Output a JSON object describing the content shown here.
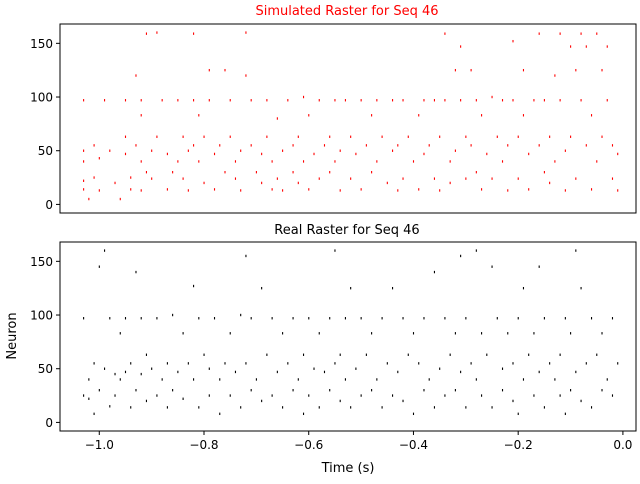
{
  "chart_data": [
    {
      "type": "scatter",
      "title": "Simulated Raster for Seq 46",
      "title_color": "#ff0000",
      "marker_color": "#ff0000",
      "xlabel": "",
      "ylabel": "",
      "xlim": [
        -1.075,
        0.025
      ],
      "ylim": [
        -8,
        168
      ],
      "x_ticks_shown": false,
      "y_ticks": [
        0,
        50,
        100,
        150
      ],
      "y_tick_labels": [
        "0",
        "50",
        "100",
        "150"
      ],
      "grid": false,
      "points": [
        [
          -1.03,
          97
        ],
        [
          -1.03,
          50
        ],
        [
          -1.03,
          40
        ],
        [
          -1.03,
          22
        ],
        [
          -1.03,
          14
        ],
        [
          -1.02,
          5
        ],
        [
          -1.01,
          55
        ],
        [
          -1.01,
          25
        ],
        [
          -1.0,
          43
        ],
        [
          -1.0,
          13
        ],
        [
          -0.99,
          97
        ],
        [
          -0.98,
          50
        ],
        [
          -0.97,
          20
        ],
        [
          -0.96,
          5
        ],
        [
          -0.95,
          97
        ],
        [
          -0.95,
          63
        ],
        [
          -0.95,
          47
        ],
        [
          -0.94,
          25
        ],
        [
          -0.94,
          14
        ],
        [
          -0.93,
          120
        ],
        [
          -0.93,
          55
        ],
        [
          -0.92,
          97
        ],
        [
          -0.92,
          83
        ],
        [
          -0.92,
          40
        ],
        [
          -0.92,
          13
        ],
        [
          -0.91,
          159
        ],
        [
          -0.91,
          30
        ],
        [
          -0.9,
          50
        ],
        [
          -0.9,
          24
        ],
        [
          -0.89,
          160
        ],
        [
          -0.89,
          63
        ],
        [
          -0.88,
          97
        ],
        [
          -0.87,
          47
        ],
        [
          -0.87,
          14
        ],
        [
          -0.86,
          30
        ],
        [
          -0.85,
          97
        ],
        [
          -0.85,
          40
        ],
        [
          -0.84,
          63
        ],
        [
          -0.84,
          24
        ],
        [
          -0.83,
          50
        ],
        [
          -0.83,
          13
        ],
        [
          -0.82,
          159
        ],
        [
          -0.82,
          97
        ],
        [
          -0.82,
          55
        ],
        [
          -0.81,
          83
        ],
        [
          -0.81,
          40
        ],
        [
          -0.8,
          63
        ],
        [
          -0.8,
          20
        ],
        [
          -0.79,
          97
        ],
        [
          -0.79,
          125
        ],
        [
          -0.78,
          47
        ],
        [
          -0.78,
          14
        ],
        [
          -0.77,
          55
        ],
        [
          -0.76,
          125
        ],
        [
          -0.76,
          30
        ],
        [
          -0.75,
          97
        ],
        [
          -0.75,
          63
        ],
        [
          -0.74,
          40
        ],
        [
          -0.74,
          24
        ],
        [
          -0.73,
          50
        ],
        [
          -0.73,
          13
        ],
        [
          -0.72,
          160
        ],
        [
          -0.72,
          120
        ],
        [
          -0.71,
          97
        ],
        [
          -0.71,
          55
        ],
        [
          -0.7,
          30
        ],
        [
          -0.69,
          47
        ],
        [
          -0.69,
          20
        ],
        [
          -0.68,
          97
        ],
        [
          -0.68,
          63
        ],
        [
          -0.67,
          40
        ],
        [
          -0.67,
          14
        ],
        [
          -0.66,
          80
        ],
        [
          -0.66,
          24
        ],
        [
          -0.65,
          50
        ],
        [
          -0.65,
          13
        ],
        [
          -0.64,
          97
        ],
        [
          -0.63,
          55
        ],
        [
          -0.63,
          30
        ],
        [
          -0.62,
          63
        ],
        [
          -0.62,
          20
        ],
        [
          -0.61,
          100
        ],
        [
          -0.61,
          40
        ],
        [
          -0.6,
          83
        ],
        [
          -0.6,
          14
        ],
        [
          -0.59,
          47
        ],
        [
          -0.58,
          97
        ],
        [
          -0.58,
          24
        ],
        [
          -0.57,
          55
        ],
        [
          -0.56,
          63
        ],
        [
          -0.56,
          30
        ],
        [
          -0.55,
          97
        ],
        [
          -0.55,
          40
        ],
        [
          -0.54,
          50
        ],
        [
          -0.54,
          13
        ],
        [
          -0.53,
          97
        ],
        [
          -0.52,
          63
        ],
        [
          -0.52,
          24
        ],
        [
          -0.51,
          47
        ],
        [
          -0.5,
          97
        ],
        [
          -0.5,
          14
        ],
        [
          -0.49,
          55
        ],
        [
          -0.48,
          83
        ],
        [
          -0.48,
          30
        ],
        [
          -0.47,
          97
        ],
        [
          -0.47,
          40
        ],
        [
          -0.46,
          63
        ],
        [
          -0.45,
          20
        ],
        [
          -0.44,
          97
        ],
        [
          -0.44,
          50
        ],
        [
          -0.43,
          55
        ],
        [
          -0.43,
          13
        ],
        [
          -0.42,
          97
        ],
        [
          -0.42,
          24
        ],
        [
          -0.41,
          63
        ],
        [
          -0.4,
          40
        ],
        [
          -0.39,
          83
        ],
        [
          -0.39,
          14
        ],
        [
          -0.38,
          97
        ],
        [
          -0.38,
          47
        ],
        [
          -0.37,
          55
        ],
        [
          -0.36,
          97
        ],
        [
          -0.36,
          24
        ],
        [
          -0.35,
          63
        ],
        [
          -0.35,
          13
        ],
        [
          -0.34,
          159
        ],
        [
          -0.34,
          97
        ],
        [
          -0.33,
          40
        ],
        [
          -0.33,
          20
        ],
        [
          -0.32,
          125
        ],
        [
          -0.32,
          50
        ],
        [
          -0.31,
          147
        ],
        [
          -0.31,
          97
        ],
        [
          -0.3,
          63
        ],
        [
          -0.3,
          24
        ],
        [
          -0.29,
          125
        ],
        [
          -0.29,
          55
        ],
        [
          -0.28,
          97
        ],
        [
          -0.28,
          30
        ],
        [
          -0.27,
          83
        ],
        [
          -0.27,
          14
        ],
        [
          -0.26,
          47
        ],
        [
          -0.25,
          100
        ],
        [
          -0.25,
          24
        ],
        [
          -0.24,
          63
        ],
        [
          -0.23,
          97
        ],
        [
          -0.23,
          40
        ],
        [
          -0.22,
          55
        ],
        [
          -0.22,
          13
        ],
        [
          -0.21,
          152
        ],
        [
          -0.21,
          97
        ],
        [
          -0.2,
          63
        ],
        [
          -0.2,
          24
        ],
        [
          -0.19,
          125
        ],
        [
          -0.19,
          83
        ],
        [
          -0.18,
          47
        ],
        [
          -0.18,
          14
        ],
        [
          -0.17,
          97
        ],
        [
          -0.16,
          159
        ],
        [
          -0.16,
          55
        ],
        [
          -0.15,
          97
        ],
        [
          -0.15,
          30
        ],
        [
          -0.14,
          63
        ],
        [
          -0.14,
          20
        ],
        [
          -0.13,
          120
        ],
        [
          -0.13,
          40
        ],
        [
          -0.12,
          159
        ],
        [
          -0.12,
          97
        ],
        [
          -0.11,
          50
        ],
        [
          -0.11,
          13
        ],
        [
          -0.1,
          147
        ],
        [
          -0.1,
          63
        ],
        [
          -0.09,
          125
        ],
        [
          -0.09,
          24
        ],
        [
          -0.08,
          159
        ],
        [
          -0.08,
          97
        ],
        [
          -0.07,
          147
        ],
        [
          -0.07,
          55
        ],
        [
          -0.06,
          83
        ],
        [
          -0.06,
          14
        ],
        [
          -0.05,
          159
        ],
        [
          -0.05,
          40
        ],
        [
          -0.04,
          125
        ],
        [
          -0.04,
          63
        ],
        [
          -0.03,
          147
        ],
        [
          -0.03,
          97
        ],
        [
          -0.02,
          55
        ],
        [
          -0.02,
          24
        ],
        [
          -0.01,
          47
        ],
        [
          -0.01,
          13
        ]
      ]
    },
    {
      "type": "scatter",
      "title": "Real Raster for Seq 46",
      "title_color": "#000000",
      "marker_color": "#000000",
      "xlabel": "Time (s)",
      "ylabel": "Neuron",
      "xlim": [
        -1.075,
        0.025
      ],
      "ylim": [
        -8,
        168
      ],
      "x_ticks": [
        -1.0,
        -0.8,
        -0.6,
        -0.4,
        -0.2,
        0.0
      ],
      "x_tick_labels": [
        "−1.0",
        "−0.8",
        "−0.6",
        "−0.4",
        "−0.2",
        "0.0"
      ],
      "y_ticks": [
        0,
        50,
        100,
        150
      ],
      "y_tick_labels": [
        "0",
        "50",
        "100",
        "150"
      ],
      "grid": false,
      "points": [
        [
          -1.03,
          97
        ],
        [
          -1.03,
          25
        ],
        [
          -1.02,
          40
        ],
        [
          -1.02,
          22
        ],
        [
          -1.01,
          55
        ],
        [
          -1.01,
          8
        ],
        [
          -1.0,
          145
        ],
        [
          -1.0,
          30
        ],
        [
          -0.99,
          160
        ],
        [
          -0.99,
          50
        ],
        [
          -0.98,
          97
        ],
        [
          -0.98,
          15
        ],
        [
          -0.97,
          45
        ],
        [
          -0.97,
          25
        ],
        [
          -0.96,
          83
        ],
        [
          -0.96,
          40
        ],
        [
          -0.95,
          97
        ],
        [
          -0.95,
          47
        ],
        [
          -0.94,
          55
        ],
        [
          -0.94,
          14
        ],
        [
          -0.93,
          140
        ],
        [
          -0.93,
          30
        ],
        [
          -0.92,
          97
        ],
        [
          -0.92,
          45
        ],
        [
          -0.91,
          63
        ],
        [
          -0.91,
          20
        ],
        [
          -0.9,
          50
        ],
        [
          -0.89,
          97
        ],
        [
          -0.89,
          25
        ],
        [
          -0.88,
          40
        ],
        [
          -0.87,
          55
        ],
        [
          -0.87,
          14
        ],
        [
          -0.86,
          100
        ],
        [
          -0.86,
          30
        ],
        [
          -0.85,
          47
        ],
        [
          -0.84,
          83
        ],
        [
          -0.84,
          22
        ],
        [
          -0.83,
          55
        ],
        [
          -0.82,
          127
        ],
        [
          -0.82,
          40
        ],
        [
          -0.81,
          97
        ],
        [
          -0.81,
          14
        ],
        [
          -0.8,
          63
        ],
        [
          -0.79,
          50
        ],
        [
          -0.79,
          25
        ],
        [
          -0.78,
          97
        ],
        [
          -0.77,
          40
        ],
        [
          -0.77,
          8
        ],
        [
          -0.76,
          55
        ],
        [
          -0.75,
          83
        ],
        [
          -0.75,
          25
        ],
        [
          -0.74,
          47
        ],
        [
          -0.73,
          100
        ],
        [
          -0.73,
          14
        ],
        [
          -0.72,
          155
        ],
        [
          -0.72,
          55
        ],
        [
          -0.71,
          97
        ],
        [
          -0.71,
          30
        ],
        [
          -0.7,
          40
        ],
        [
          -0.69,
          125
        ],
        [
          -0.69,
          20
        ],
        [
          -0.68,
          63
        ],
        [
          -0.67,
          97
        ],
        [
          -0.67,
          25
        ],
        [
          -0.66,
          47
        ],
        [
          -0.65,
          83
        ],
        [
          -0.65,
          14
        ],
        [
          -0.64,
          55
        ],
        [
          -0.63,
          97
        ],
        [
          -0.63,
          30
        ],
        [
          -0.62,
          40
        ],
        [
          -0.61,
          63
        ],
        [
          -0.61,
          8
        ],
        [
          -0.6,
          97
        ],
        [
          -0.6,
          25
        ],
        [
          -0.59,
          50
        ],
        [
          -0.58,
          83
        ],
        [
          -0.58,
          14
        ],
        [
          -0.57,
          47
        ],
        [
          -0.56,
          97
        ],
        [
          -0.56,
          30
        ],
        [
          -0.55,
          160
        ],
        [
          -0.55,
          55
        ],
        [
          -0.54,
          63
        ],
        [
          -0.54,
          20
        ],
        [
          -0.53,
          97
        ],
        [
          -0.53,
          40
        ],
        [
          -0.52,
          125
        ],
        [
          -0.52,
          14
        ],
        [
          -0.51,
          50
        ],
        [
          -0.5,
          97
        ],
        [
          -0.5,
          25
        ],
        [
          -0.49,
          63
        ],
        [
          -0.48,
          83
        ],
        [
          -0.48,
          30
        ],
        [
          -0.47,
          40
        ],
        [
          -0.46,
          97
        ],
        [
          -0.46,
          14
        ],
        [
          -0.45,
          55
        ],
        [
          -0.44,
          125
        ],
        [
          -0.44,
          25
        ],
        [
          -0.43,
          47
        ],
        [
          -0.42,
          97
        ],
        [
          -0.42,
          20
        ],
        [
          -0.41,
          63
        ],
        [
          -0.4,
          83
        ],
        [
          -0.4,
          8
        ],
        [
          -0.39,
          55
        ],
        [
          -0.38,
          97
        ],
        [
          -0.38,
          30
        ],
        [
          -0.37,
          40
        ],
        [
          -0.36,
          140
        ],
        [
          -0.36,
          14
        ],
        [
          -0.35,
          50
        ],
        [
          -0.34,
          97
        ],
        [
          -0.34,
          25
        ],
        [
          -0.33,
          63
        ],
        [
          -0.32,
          83
        ],
        [
          -0.32,
          30
        ],
        [
          -0.31,
          155
        ],
        [
          -0.31,
          47
        ],
        [
          -0.3,
          97
        ],
        [
          -0.3,
          14
        ],
        [
          -0.29,
          55
        ],
        [
          -0.28,
          160
        ],
        [
          -0.28,
          40
        ],
        [
          -0.27,
          83
        ],
        [
          -0.27,
          25
        ],
        [
          -0.26,
          63
        ],
        [
          -0.25,
          145
        ],
        [
          -0.25,
          14
        ],
        [
          -0.24,
          97
        ],
        [
          -0.23,
          50
        ],
        [
          -0.23,
          30
        ],
        [
          -0.22,
          83
        ],
        [
          -0.21,
          55
        ],
        [
          -0.21,
          20
        ],
        [
          -0.2,
          97
        ],
        [
          -0.2,
          8
        ],
        [
          -0.19,
          125
        ],
        [
          -0.19,
          40
        ],
        [
          -0.18,
          63
        ],
        [
          -0.17,
          83
        ],
        [
          -0.17,
          25
        ],
        [
          -0.16,
          145
        ],
        [
          -0.16,
          47
        ],
        [
          -0.15,
          97
        ],
        [
          -0.15,
          14
        ],
        [
          -0.14,
          55
        ],
        [
          -0.13,
          40
        ],
        [
          -0.12,
          63
        ],
        [
          -0.12,
          25
        ],
        [
          -0.11,
          97
        ],
        [
          -0.11,
          8
        ],
        [
          -0.1,
          83
        ],
        [
          -0.1,
          30
        ],
        [
          -0.09,
          160
        ],
        [
          -0.09,
          47
        ],
        [
          -0.08,
          125
        ],
        [
          -0.08,
          20
        ],
        [
          -0.07,
          55
        ],
        [
          -0.06,
          97
        ],
        [
          -0.06,
          14
        ],
        [
          -0.05,
          63
        ],
        [
          -0.04,
          83
        ],
        [
          -0.04,
          30
        ],
        [
          -0.03,
          40
        ],
        [
          -0.02,
          97
        ],
        [
          -0.02,
          25
        ],
        [
          -0.01,
          55
        ]
      ]
    }
  ]
}
